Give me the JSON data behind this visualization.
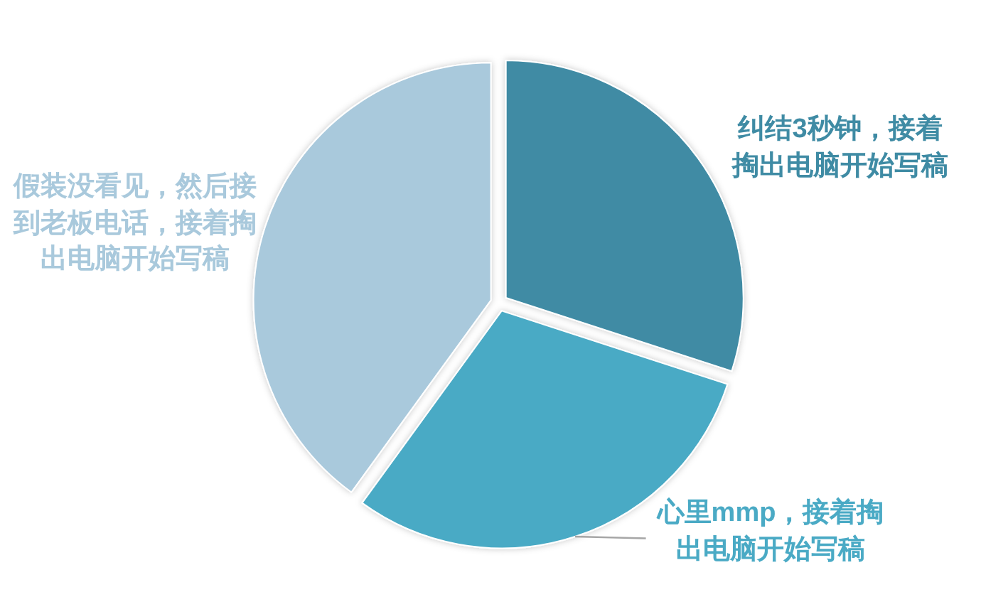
{
  "chart_data": {
    "type": "pie",
    "categories": [
      "纠结3秒钟，接着掏出电脑开始写稿",
      "心里mmp，接着掏出电脑开始写稿",
      "假装没看见，然后接到老板电话，接着掏出电脑开始写稿"
    ],
    "values": [
      30,
      30,
      40
    ],
    "colors": [
      "#3f8ba4",
      "#4aaac5",
      "#a9c9dc"
    ]
  }
}
